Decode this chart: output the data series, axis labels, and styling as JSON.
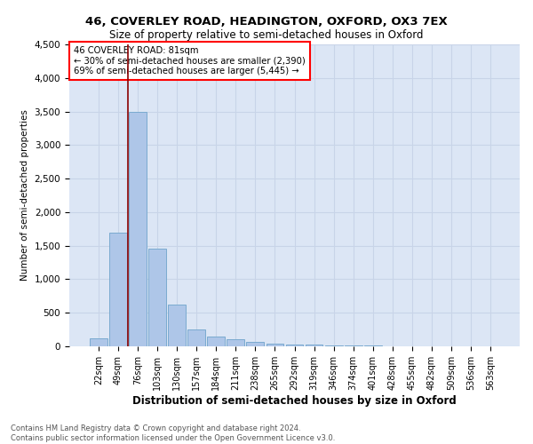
{
  "title1": "46, COVERLEY ROAD, HEADINGTON, OXFORD, OX3 7EX",
  "title2": "Size of property relative to semi-detached houses in Oxford",
  "xlabel": "Distribution of semi-detached houses by size in Oxford",
  "ylabel": "Number of semi-detached properties",
  "footer": "Contains HM Land Registry data © Crown copyright and database right 2024.\nContains public sector information licensed under the Open Government Licence v3.0.",
  "categories": [
    "22sqm",
    "49sqm",
    "76sqm",
    "103sqm",
    "130sqm",
    "157sqm",
    "184sqm",
    "211sqm",
    "238sqm",
    "265sqm",
    "292sqm",
    "319sqm",
    "346sqm",
    "374sqm",
    "401sqm",
    "428sqm",
    "455sqm",
    "482sqm",
    "509sqm",
    "536sqm",
    "563sqm"
  ],
  "values": [
    120,
    1700,
    3500,
    1450,
    620,
    250,
    150,
    100,
    65,
    45,
    30,
    22,
    15,
    12,
    8,
    6,
    5,
    4,
    3,
    3,
    3
  ],
  "bar_color": "#aec6e8",
  "bar_edge_color": "#7aaad0",
  "grid_color": "#c8d4e8",
  "bg_color": "#dce6f5",
  "red_line_label": "46 COVERLEY ROAD: 81sqm",
  "annotation_line1": "← 30% of semi-detached houses are smaller (2,390)",
  "annotation_line2": "69% of semi-detached houses are larger (5,445) →",
  "ylim": [
    0,
    4500
  ],
  "yticks": [
    0,
    500,
    1000,
    1500,
    2000,
    2500,
    3000,
    3500,
    4000,
    4500
  ]
}
